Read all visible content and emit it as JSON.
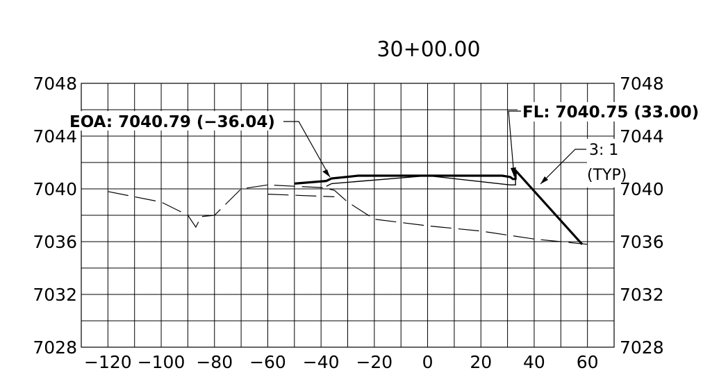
{
  "station_label": "30+00.00",
  "axes": {
    "y_left_ticks": [
      "7048",
      "7044",
      "7040",
      "7036",
      "7032",
      "7028"
    ],
    "y_right_ticks": [
      "7048",
      "7044",
      "7040",
      "7036",
      "7032",
      "7028"
    ],
    "x_ticks": [
      "-120",
      "-100",
      "-80",
      "-60",
      "-40",
      "-20",
      "0",
      "20",
      "40",
      "60"
    ],
    "x_range": [
      -130,
      70
    ],
    "y_range": [
      7028,
      7048
    ],
    "x_grid_step": 10,
    "y_grid_step": 2
  },
  "callouts": {
    "eoa": "EOA: 7040.79  (−36.04)",
    "fl": "FL: 7040.75  (33.00)",
    "slope": "3: 1",
    "slope_note": "(TYP)"
  },
  "profiles": {
    "existing_ground": [
      [
        -120,
        7039.8
      ],
      [
        -100,
        7039.0
      ],
      [
        -90,
        7038.0
      ],
      [
        -87,
        7037.1
      ],
      [
        -85,
        7037.9
      ],
      [
        -80,
        7038.0
      ],
      [
        -70,
        7040.0
      ],
      [
        -60,
        7040.3
      ],
      [
        -50,
        7040.2
      ],
      [
        -40,
        7040.1
      ],
      [
        -35,
        7039.9
      ],
      [
        -30,
        7039.0
      ],
      [
        -20,
        7037.7
      ],
      [
        0,
        7037.2
      ],
      [
        20,
        7036.8
      ],
      [
        40,
        7036.2
      ],
      [
        60,
        7035.8
      ]
    ],
    "existing_inner": [
      [
        -60,
        7039.6
      ],
      [
        -35,
        7039.4
      ]
    ],
    "proposed_top": [
      [
        -50,
        7040.4
      ],
      [
        -38,
        7040.6
      ],
      [
        -36.04,
        7040.79
      ],
      [
        -26,
        7041.0
      ],
      [
        0,
        7041.0
      ],
      [
        28,
        7041.0
      ],
      [
        31,
        7040.9
      ],
      [
        32,
        7040.75
      ],
      [
        33,
        7040.75
      ],
      [
        33,
        7041.4
      ],
      [
        58,
        7035.8
      ]
    ],
    "proposed_bottom": [
      [
        -38,
        7040.2
      ],
      [
        -36,
        7040.4
      ],
      [
        0,
        7041.0
      ],
      [
        31,
        7040.3
      ],
      [
        33,
        7040.3
      ],
      [
        33,
        7040.75
      ]
    ]
  }
}
